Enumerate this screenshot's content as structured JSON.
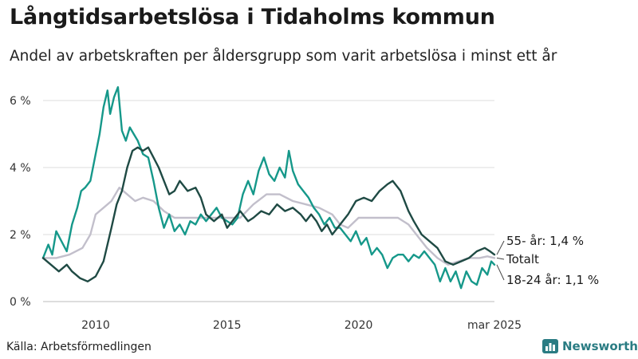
{
  "header": {
    "title": "Långtidsarbetslösa i Tidaholms kommun",
    "subtitle": "Andel av arbetskraften per åldersgrupp som varit arbetslösa i minst ett år"
  },
  "footer": {
    "source": "Källa: Arbetsförmedlingen",
    "brand": "Newsworthy"
  },
  "colors": {
    "age55": "#1f4a44",
    "total": "#c2bfcb",
    "age1824": "#16988a",
    "grid": "#dddddd",
    "brand": "#2a7c83"
  },
  "chart_data": {
    "type": "line",
    "title": "Långtidsarbetslösa i Tidaholms kommun",
    "subtitle": "Andel av arbetskraften per åldersgrupp som varit arbetslösa i minst ett år",
    "x_ticks": [
      {
        "x": 2010,
        "label": "2010"
      },
      {
        "x": 2015,
        "label": "2015"
      },
      {
        "x": 2020,
        "label": "2020"
      },
      {
        "x": 2025.17,
        "label": "mar 2025"
      }
    ],
    "y_ticks": [
      {
        "y": 0,
        "label": "0 %"
      },
      {
        "y": 2,
        "label": "2 %"
      },
      {
        "y": 4,
        "label": "4 %"
      },
      {
        "y": 6,
        "label": "6 %"
      }
    ],
    "xlim": [
      2008,
      2025.17
    ],
    "ylim": [
      0,
      6.5
    ],
    "grid": true,
    "legend": "end-labels-right",
    "series": [
      {
        "name": "55-",
        "label": "55- år: 1,4 %",
        "color": "#1f4a44",
        "points": [
          [
            2008.0,
            1.3
          ],
          [
            2008.3,
            1.1
          ],
          [
            2008.6,
            0.9
          ],
          [
            2008.9,
            1.1
          ],
          [
            2009.1,
            0.9
          ],
          [
            2009.4,
            0.7
          ],
          [
            2009.7,
            0.6
          ],
          [
            2010.0,
            0.75
          ],
          [
            2010.3,
            1.2
          ],
          [
            2010.6,
            2.2
          ],
          [
            2010.8,
            2.9
          ],
          [
            2011.0,
            3.3
          ],
          [
            2011.2,
            4.0
          ],
          [
            2011.4,
            4.5
          ],
          [
            2011.6,
            4.6
          ],
          [
            2011.8,
            4.5
          ],
          [
            2012.0,
            4.6
          ],
          [
            2012.2,
            4.3
          ],
          [
            2012.4,
            4.0
          ],
          [
            2012.6,
            3.6
          ],
          [
            2012.8,
            3.2
          ],
          [
            2013.0,
            3.3
          ],
          [
            2013.2,
            3.6
          ],
          [
            2013.5,
            3.3
          ],
          [
            2013.8,
            3.4
          ],
          [
            2014.0,
            3.1
          ],
          [
            2014.2,
            2.6
          ],
          [
            2014.5,
            2.4
          ],
          [
            2014.8,
            2.6
          ],
          [
            2015.0,
            2.2
          ],
          [
            2015.2,
            2.4
          ],
          [
            2015.5,
            2.7
          ],
          [
            2015.8,
            2.4
          ],
          [
            2016.0,
            2.5
          ],
          [
            2016.3,
            2.7
          ],
          [
            2016.6,
            2.6
          ],
          [
            2016.9,
            2.9
          ],
          [
            2017.2,
            2.7
          ],
          [
            2017.5,
            2.8
          ],
          [
            2017.8,
            2.6
          ],
          [
            2018.0,
            2.4
          ],
          [
            2018.2,
            2.6
          ],
          [
            2018.4,
            2.4
          ],
          [
            2018.6,
            2.1
          ],
          [
            2018.8,
            2.3
          ],
          [
            2019.0,
            2.0
          ],
          [
            2019.3,
            2.3
          ],
          [
            2019.6,
            2.6
          ],
          [
            2019.9,
            3.0
          ],
          [
            2020.2,
            3.1
          ],
          [
            2020.5,
            3.0
          ],
          [
            2020.8,
            3.3
          ],
          [
            2021.1,
            3.5
          ],
          [
            2021.3,
            3.6
          ],
          [
            2021.6,
            3.3
          ],
          [
            2021.9,
            2.7
          ],
          [
            2022.1,
            2.4
          ],
          [
            2022.4,
            2.0
          ],
          [
            2022.7,
            1.8
          ],
          [
            2023.0,
            1.6
          ],
          [
            2023.3,
            1.2
          ],
          [
            2023.6,
            1.1
          ],
          [
            2023.9,
            1.2
          ],
          [
            2024.2,
            1.3
          ],
          [
            2024.5,
            1.5
          ],
          [
            2024.8,
            1.6
          ],
          [
            2025.0,
            1.5
          ],
          [
            2025.17,
            1.4
          ]
        ]
      },
      {
        "name": "Totalt",
        "label": "Totalt",
        "color": "#c2bfcb",
        "points": [
          [
            2008.0,
            1.3
          ],
          [
            2008.5,
            1.3
          ],
          [
            2009.0,
            1.4
          ],
          [
            2009.5,
            1.6
          ],
          [
            2009.8,
            2.0
          ],
          [
            2010.0,
            2.6
          ],
          [
            2010.3,
            2.8
          ],
          [
            2010.6,
            3.0
          ],
          [
            2010.9,
            3.4
          ],
          [
            2011.2,
            3.2
          ],
          [
            2011.5,
            3.0
          ],
          [
            2011.8,
            3.1
          ],
          [
            2012.2,
            3.0
          ],
          [
            2012.6,
            2.7
          ],
          [
            2013.0,
            2.5
          ],
          [
            2013.5,
            2.5
          ],
          [
            2014.0,
            2.5
          ],
          [
            2014.5,
            2.5
          ],
          [
            2015.0,
            2.5
          ],
          [
            2015.5,
            2.5
          ],
          [
            2016.0,
            2.9
          ],
          [
            2016.5,
            3.2
          ],
          [
            2017.0,
            3.2
          ],
          [
            2017.5,
            3.0
          ],
          [
            2018.0,
            2.9
          ],
          [
            2018.5,
            2.8
          ],
          [
            2019.0,
            2.6
          ],
          [
            2019.3,
            2.3
          ],
          [
            2019.6,
            2.2
          ],
          [
            2020.0,
            2.5
          ],
          [
            2020.5,
            2.5
          ],
          [
            2021.0,
            2.5
          ],
          [
            2021.5,
            2.5
          ],
          [
            2021.9,
            2.3
          ],
          [
            2022.2,
            2.0
          ],
          [
            2022.6,
            1.6
          ],
          [
            2023.0,
            1.3
          ],
          [
            2023.4,
            1.1
          ],
          [
            2023.8,
            1.2
          ],
          [
            2024.2,
            1.3
          ],
          [
            2024.6,
            1.3
          ],
          [
            2024.9,
            1.35
          ],
          [
            2025.17,
            1.3
          ]
        ]
      },
      {
        "name": "18-24",
        "label": "18-24 år: 1,1 %",
        "color": "#16988a",
        "points": [
          [
            2008.0,
            1.3
          ],
          [
            2008.2,
            1.7
          ],
          [
            2008.35,
            1.4
          ],
          [
            2008.5,
            2.1
          ],
          [
            2008.7,
            1.8
          ],
          [
            2008.9,
            1.5
          ],
          [
            2009.1,
            2.3
          ],
          [
            2009.3,
            2.8
          ],
          [
            2009.45,
            3.3
          ],
          [
            2009.6,
            3.4
          ],
          [
            2009.8,
            3.6
          ],
          [
            2010.0,
            4.4
          ],
          [
            2010.15,
            5.0
          ],
          [
            2010.3,
            5.8
          ],
          [
            2010.45,
            6.3
          ],
          [
            2010.55,
            5.6
          ],
          [
            2010.7,
            6.1
          ],
          [
            2010.85,
            6.4
          ],
          [
            2011.0,
            5.1
          ],
          [
            2011.15,
            4.8
          ],
          [
            2011.3,
            5.2
          ],
          [
            2011.45,
            5.0
          ],
          [
            2011.6,
            4.8
          ],
          [
            2011.8,
            4.4
          ],
          [
            2012.0,
            4.3
          ],
          [
            2012.2,
            3.6
          ],
          [
            2012.4,
            2.8
          ],
          [
            2012.6,
            2.2
          ],
          [
            2012.8,
            2.6
          ],
          [
            2013.0,
            2.1
          ],
          [
            2013.2,
            2.3
          ],
          [
            2013.4,
            2.0
          ],
          [
            2013.6,
            2.4
          ],
          [
            2013.8,
            2.3
          ],
          [
            2014.0,
            2.6
          ],
          [
            2014.2,
            2.4
          ],
          [
            2014.4,
            2.6
          ],
          [
            2014.6,
            2.8
          ],
          [
            2014.8,
            2.5
          ],
          [
            2015.0,
            2.4
          ],
          [
            2015.2,
            2.3
          ],
          [
            2015.4,
            2.5
          ],
          [
            2015.6,
            3.2
          ],
          [
            2015.8,
            3.6
          ],
          [
            2016.0,
            3.2
          ],
          [
            2016.2,
            3.9
          ],
          [
            2016.4,
            4.3
          ],
          [
            2016.6,
            3.8
          ],
          [
            2016.8,
            3.6
          ],
          [
            2017.0,
            4.0
          ],
          [
            2017.2,
            3.7
          ],
          [
            2017.35,
            4.5
          ],
          [
            2017.5,
            3.9
          ],
          [
            2017.7,
            3.5
          ],
          [
            2017.9,
            3.3
          ],
          [
            2018.1,
            3.1
          ],
          [
            2018.3,
            2.8
          ],
          [
            2018.5,
            2.6
          ],
          [
            2018.7,
            2.3
          ],
          [
            2018.9,
            2.5
          ],
          [
            2019.1,
            2.2
          ],
          [
            2019.3,
            2.2
          ],
          [
            2019.5,
            2.0
          ],
          [
            2019.7,
            1.8
          ],
          [
            2019.9,
            2.1
          ],
          [
            2020.1,
            1.7
          ],
          [
            2020.3,
            1.9
          ],
          [
            2020.5,
            1.4
          ],
          [
            2020.7,
            1.6
          ],
          [
            2020.9,
            1.4
          ],
          [
            2021.1,
            1.0
          ],
          [
            2021.3,
            1.3
          ],
          [
            2021.5,
            1.4
          ],
          [
            2021.7,
            1.4
          ],
          [
            2021.9,
            1.2
          ],
          [
            2022.1,
            1.4
          ],
          [
            2022.3,
            1.3
          ],
          [
            2022.5,
            1.5
          ],
          [
            2022.7,
            1.3
          ],
          [
            2022.9,
            1.1
          ],
          [
            2023.1,
            0.6
          ],
          [
            2023.3,
            1.0
          ],
          [
            2023.5,
            0.6
          ],
          [
            2023.7,
            0.9
          ],
          [
            2023.9,
            0.4
          ],
          [
            2024.1,
            0.9
          ],
          [
            2024.3,
            0.6
          ],
          [
            2024.5,
            0.5
          ],
          [
            2024.7,
            1.0
          ],
          [
            2024.9,
            0.8
          ],
          [
            2025.05,
            1.2
          ],
          [
            2025.17,
            1.1
          ]
        ]
      }
    ]
  }
}
